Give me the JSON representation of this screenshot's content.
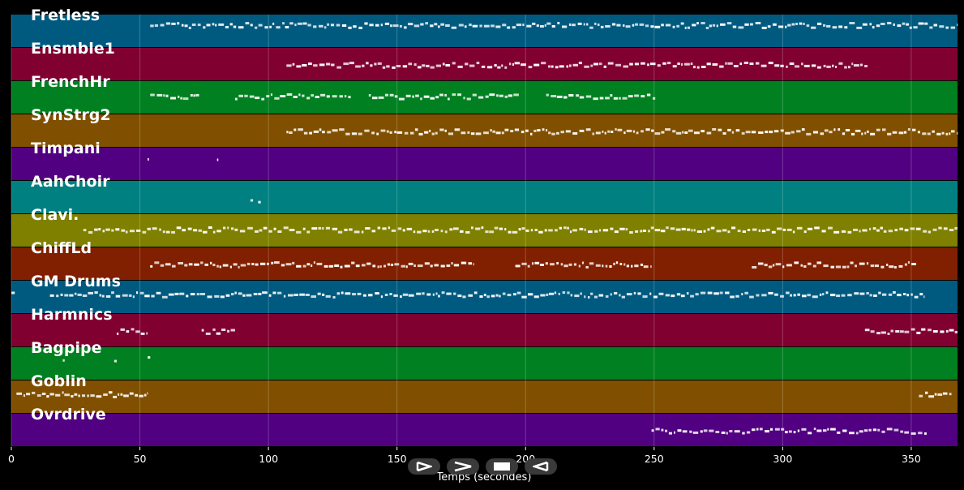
{
  "chart_data": {
    "type": "piano-roll",
    "xlabel": "Temps (secondes)",
    "xlim": [
      0,
      368
    ],
    "xticks": [
      0,
      50,
      100,
      150,
      200,
      250,
      300,
      350
    ],
    "tracks": [
      {
        "name": "Fretless",
        "color": "#005a80",
        "segments": [
          [
            54,
            368
          ]
        ],
        "pitch": 0.7
      },
      {
        "name": "Ensmble1",
        "color": "#800030",
        "segments": [
          [
            107,
            333
          ]
        ],
        "pitch": 0.5
      },
      {
        "name": "FrenchHr",
        "color": "#008020",
        "segments": [
          [
            54,
            73
          ],
          [
            87,
            132
          ],
          [
            139,
            198
          ],
          [
            208,
            251
          ]
        ],
        "pitch": 0.55
      },
      {
        "name": "SynStrg2",
        "color": "#805000",
        "segments": [
          [
            107,
            368
          ]
        ],
        "pitch": 0.5
      },
      {
        "name": "Timpani",
        "color": "#500080",
        "segments": [
          [
            53,
            53.5
          ],
          [
            80,
            80.5
          ]
        ],
        "pitch": 0.65
      },
      {
        "name": "AahChoir",
        "color": "#008080",
        "segments": [
          [
            93,
            94
          ],
          [
            96,
            97
          ]
        ],
        "pitch": 0.45
      },
      {
        "name": "Clavi.",
        "color": "#808000",
        "segments": [
          [
            28,
            368
          ]
        ],
        "pitch": 0.55
      },
      {
        "name": "ChiffLd",
        "color": "#802000",
        "segments": [
          [
            54,
            180
          ],
          [
            196,
            249
          ],
          [
            288,
            352
          ]
        ],
        "pitch": 0.5
      },
      {
        "name": "GM Drums",
        "color": "#005a80",
        "segments": [
          [
            0,
            2
          ],
          [
            15,
            355
          ]
        ],
        "pitch": 0.6
      },
      {
        "name": "Harmnics",
        "color": "#800030",
        "segments": [
          [
            41,
            53
          ],
          [
            74,
            87
          ],
          [
            332,
            368
          ]
        ],
        "pitch": 0.5
      },
      {
        "name": "Bagpipe",
        "color": "#008020",
        "segments": [
          [
            20,
            21
          ],
          [
            40,
            41
          ],
          [
            53,
            54
          ]
        ],
        "pitch": 0.65
      },
      {
        "name": "Goblin",
        "color": "#805000",
        "segments": [
          [
            2,
            53
          ],
          [
            353,
            366
          ]
        ],
        "pitch": 0.6
      },
      {
        "name": "Ovrdrive",
        "color": "#500080",
        "segments": [
          [
            249,
            356
          ]
        ],
        "pitch": 0.5
      }
    ]
  },
  "controls": [
    {
      "name": "play-icon"
    },
    {
      "name": "fast-forward-icon"
    },
    {
      "name": "stop-icon"
    },
    {
      "name": "rewind-icon"
    }
  ]
}
